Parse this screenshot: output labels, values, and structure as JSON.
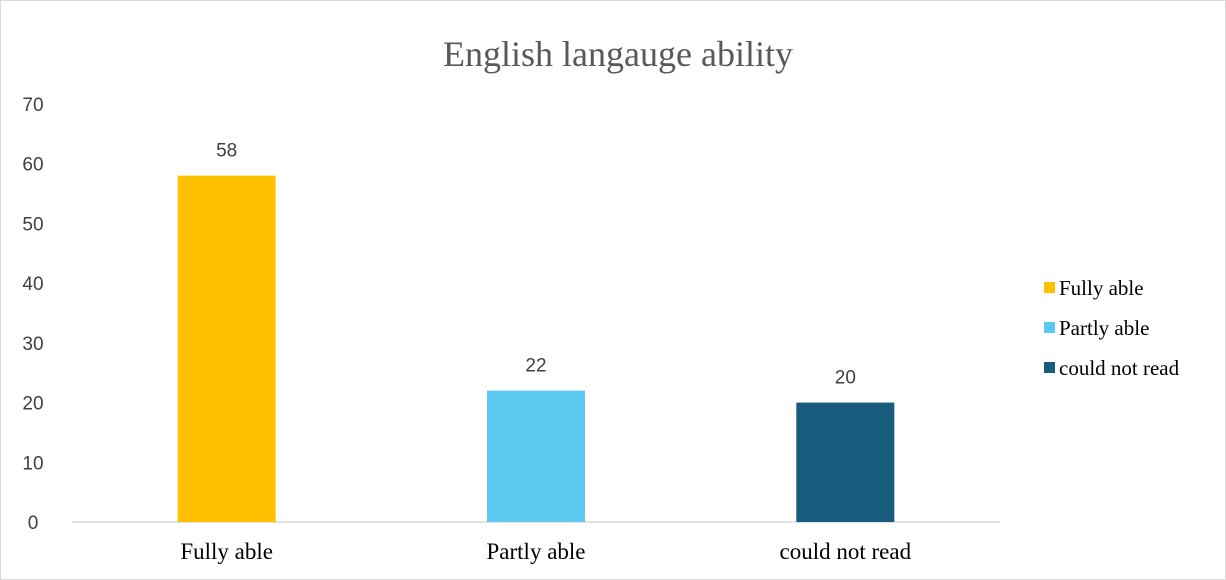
{
  "chart_data": {
    "type": "bar",
    "title": "English langauge ability",
    "xlabel": "",
    "ylabel": "",
    "categories": [
      "Fully able",
      "Partly able",
      "could not read"
    ],
    "values": [
      58,
      22,
      20
    ],
    "colors": [
      "#FFC000",
      "#5BC8F0",
      "#175B7D"
    ],
    "ylim": [
      0,
      70
    ],
    "yticks": [
      0,
      10,
      20,
      30,
      40,
      50,
      60,
      70
    ],
    "grid": false,
    "legend": {
      "position": "right",
      "entries": [
        "Fully able",
        "Partly able",
        "could not read"
      ]
    },
    "data_labels": true
  }
}
